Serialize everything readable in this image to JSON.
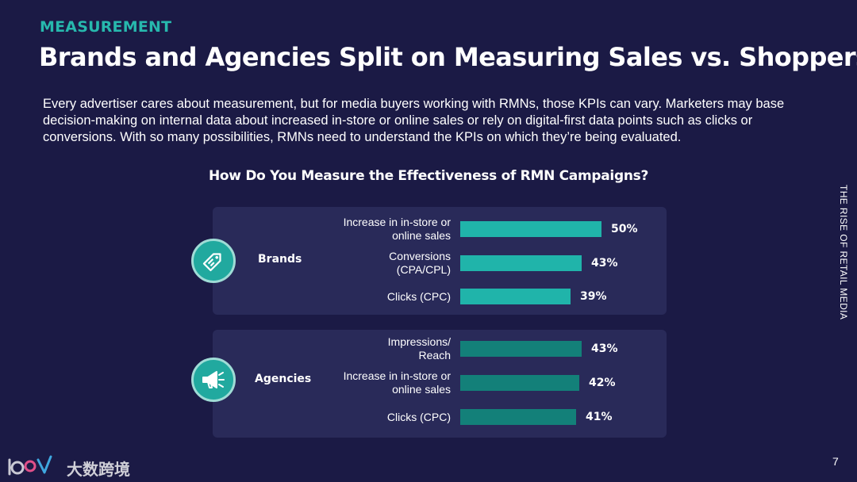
{
  "header": {
    "section": "MEASUREMENT",
    "title": "Brands and Agencies Split on Measuring Sales vs. Shoppers"
  },
  "intro": "Every advertiser cares about measurement, but for media buyers working with RMNs, those KPIs can vary. Marketers may base decision-making on internal data about increased in-store or online sales or rely on digital-first data points such as clicks or conversions. With so many possibilities, RMNs need to understand the KPIs on which they’re being evaluated.",
  "side_label": "THE RISE OF RETAIL MEDIA",
  "page_number": "7",
  "watermark": "大数跨境",
  "colors": {
    "background": "#1b1a45",
    "panel": "#292a59",
    "accent": "#27b8ad",
    "brands_bar": "#20b4aa",
    "agencies_bar": "#138079"
  },
  "chart_data": {
    "type": "bar",
    "orientation": "horizontal",
    "title": "How Do You Measure the Effectiveness of RMN Campaigns?",
    "value_suffix": "%",
    "groups": [
      {
        "name": "Brands",
        "icon": "price-tag-icon",
        "categories": [
          "Increase in in-store or online sales",
          "Conversions (CPA/CPL)",
          "Clicks (CPC)"
        ],
        "label_lines": [
          [
            "Increase in in-store or",
            "online sales"
          ],
          [
            "Conversions",
            "(CPA/CPL)"
          ],
          [
            "Clicks (CPC)"
          ]
        ],
        "values": [
          50,
          43,
          39
        ]
      },
      {
        "name": "Agencies",
        "icon": "megaphone-icon",
        "categories": [
          "Impressions/ Reach",
          "Increase in in-store or online sales",
          "Clicks (CPC)"
        ],
        "label_lines": [
          [
            "Impressions/",
            "Reach"
          ],
          [
            "Increase in in-store or",
            "online sales"
          ],
          [
            "Clicks (CPC)"
          ]
        ],
        "values": [
          43,
          42,
          41
        ]
      }
    ]
  }
}
